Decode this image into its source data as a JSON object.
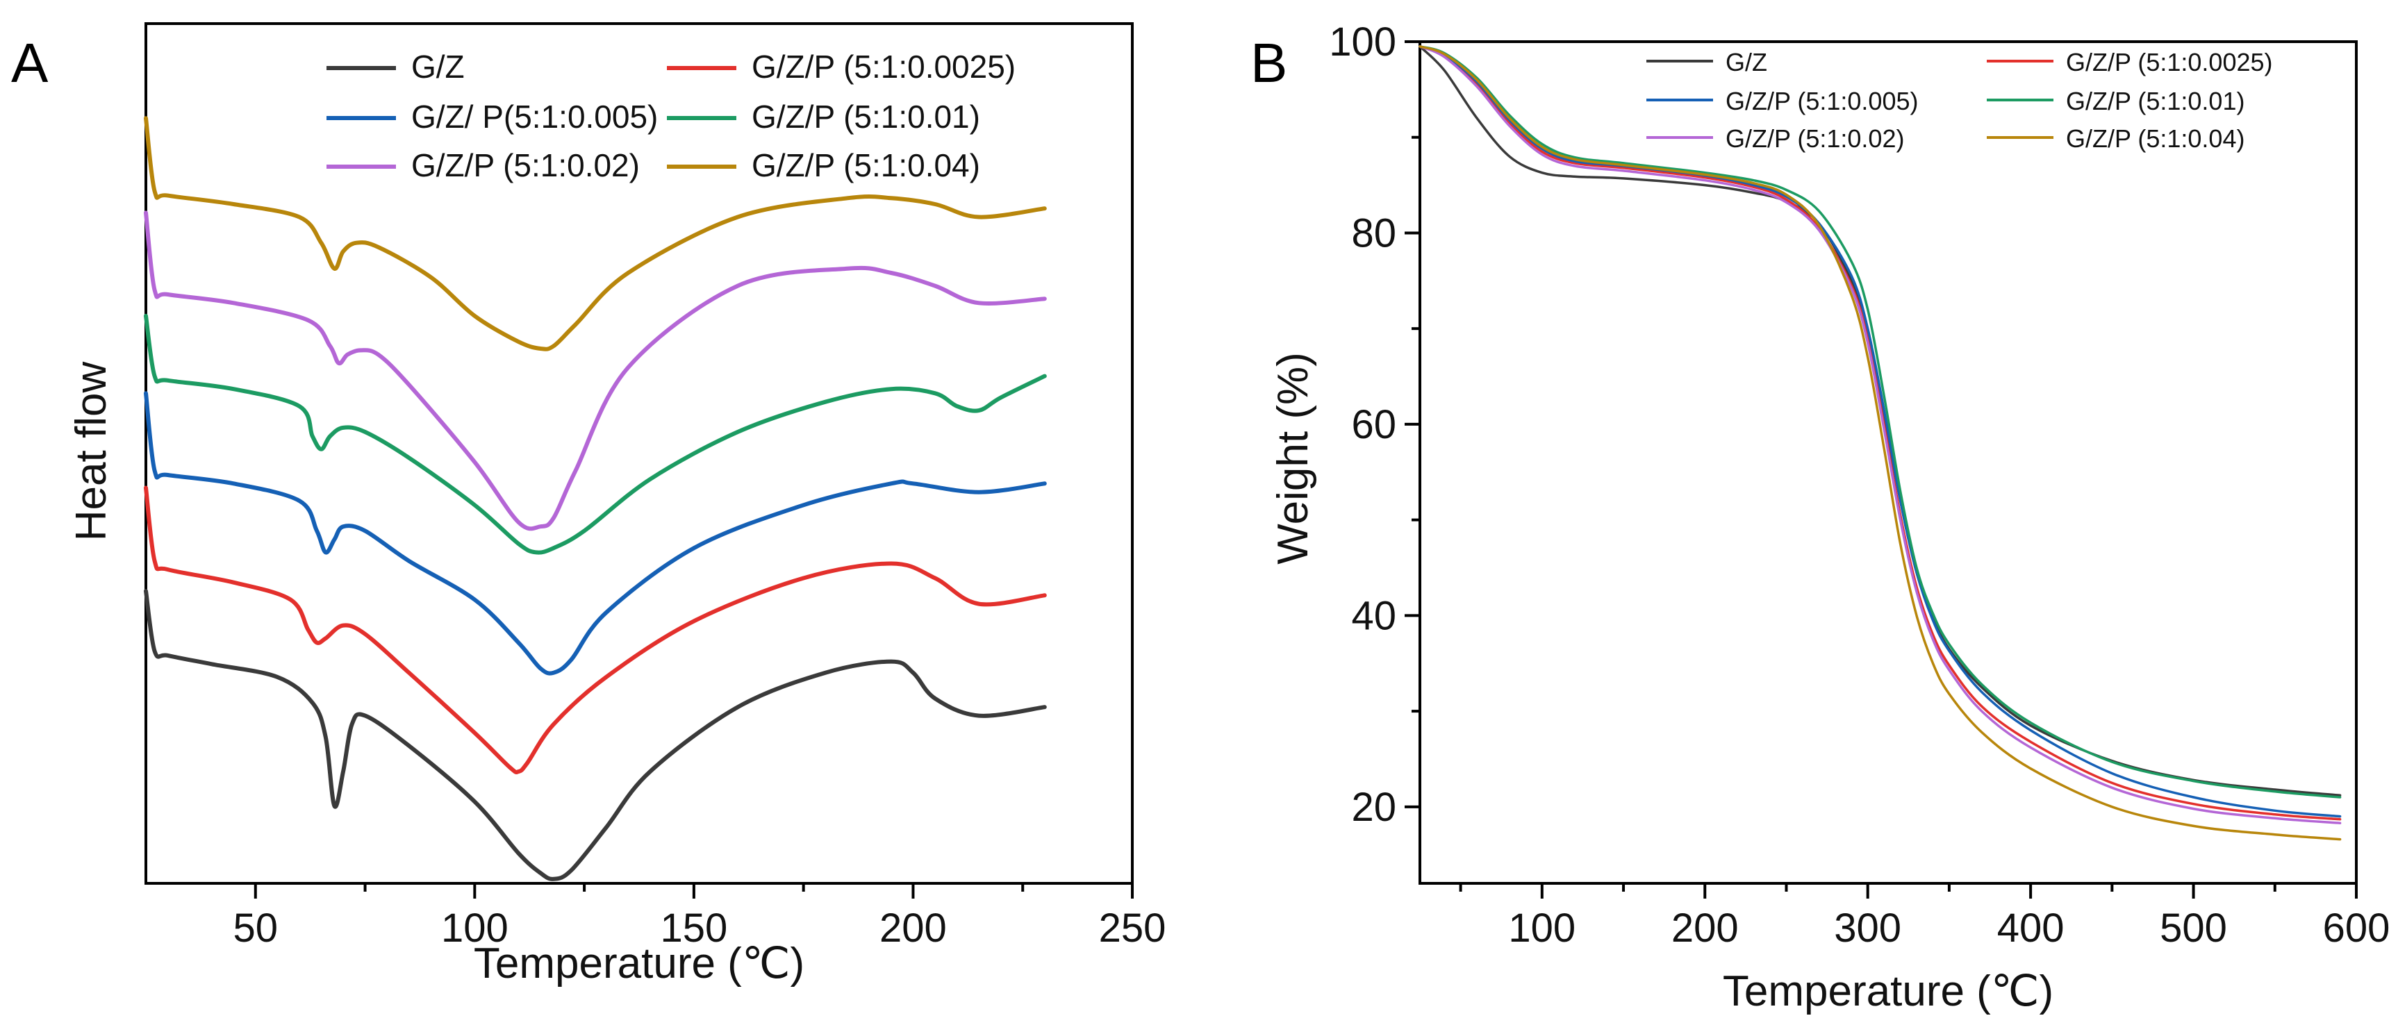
{
  "chart_data": [
    {
      "panel": "A",
      "type": "line",
      "title": "",
      "xlabel": "Temperature (℃)",
      "ylabel": "Heat flow",
      "xlim": [
        25,
        250
      ],
      "ylim": [
        0,
        100
      ],
      "xticks": [
        50,
        100,
        150,
        200,
        250
      ],
      "yticks_visible": false,
      "grid": false,
      "legend_position": "top-right",
      "series": [
        {
          "name": "G/Z",
          "color": "#3a3a3a",
          "x": [
            25,
            27,
            30,
            40,
            55,
            63,
            66,
            68,
            70,
            72,
            75,
            85,
            100,
            110,
            115,
            118,
            122,
            130,
            140,
            160,
            180,
            195,
            200,
            205,
            215,
            230
          ],
          "y": [
            34,
            27,
            26.5,
            25.5,
            24,
            21,
            17,
            9,
            13,
            18.5,
            19.5,
            16,
            9.5,
            3.5,
            1.2,
            0.5,
            1.5,
            6.5,
            13,
            20.5,
            24.5,
            25.8,
            24.5,
            21.5,
            19.5,
            20.5
          ]
        },
        {
          "name": "G/Z/P (5:1:0.0025)",
          "color": "#e3302c",
          "x": [
            25,
            27,
            30,
            45,
            58,
            62,
            64,
            66,
            70,
            75,
            85,
            100,
            108,
            110,
            112,
            118,
            130,
            150,
            175,
            195,
            205,
            215,
            230
          ],
          "y": [
            46,
            37.5,
            36.5,
            35,
            33,
            29.5,
            28,
            28.5,
            30,
            29,
            24.5,
            17.5,
            13.5,
            13,
            14,
            18.5,
            24,
            30.5,
            35.5,
            37.2,
            35.5,
            32.5,
            33.5
          ]
        },
        {
          "name": "G/Z/ P(5:1:0.005)",
          "color": "#1560b5",
          "x": [
            25,
            27,
            30,
            45,
            60,
            64,
            66,
            68,
            70,
            75,
            85,
            100,
            110,
            115,
            118,
            122,
            130,
            150,
            175,
            195,
            200,
            215,
            230
          ],
          "y": [
            57,
            48,
            47.5,
            46.5,
            44.5,
            41,
            38.5,
            40,
            41.5,
            41,
            37.5,
            33,
            28,
            25,
            24.5,
            26,
            31.5,
            39,
            44,
            46.5,
            46.5,
            45.5,
            46.5
          ]
        },
        {
          "name": "G/Z/P (5:1:0.01)",
          "color": "#1c9b62",
          "x": [
            25,
            27,
            30,
            45,
            60,
            63,
            65,
            67,
            70,
            75,
            85,
            100,
            110,
            114,
            118,
            125,
            140,
            160,
            180,
            195,
            205,
            210,
            215,
            220,
            230
          ],
          "y": [
            66,
            59,
            58.5,
            57.5,
            55.5,
            52,
            50.5,
            52,
            53,
            52.5,
            49.5,
            44,
            39.5,
            38.5,
            39,
            41,
            47,
            52.5,
            56,
            57.5,
            57,
            55.5,
            55,
            56.5,
            59
          ]
        },
        {
          "name": "G/Z/P (5:1:0.02)",
          "color": "#b466d6",
          "x": [
            25,
            27,
            30,
            45,
            62,
            67,
            69,
            71,
            74,
            78,
            85,
            100,
            110,
            115,
            118,
            123,
            135,
            160,
            185,
            195,
            205,
            215,
            230
          ],
          "y": [
            78,
            69,
            68.5,
            67.5,
            65.5,
            62.5,
            60.5,
            61.5,
            62,
            61.5,
            58,
            49,
            42,
            41.5,
            42.5,
            48,
            60,
            69.5,
            71.5,
            71,
            69.5,
            67.5,
            68
          ]
        },
        {
          "name": "G/Z/P (5:1:0.04)",
          "color": "#b8860b",
          "x": [
            25,
            27,
            30,
            45,
            60,
            65,
            68,
            70,
            73,
            78,
            90,
            100,
            110,
            115,
            118,
            123,
            135,
            160,
            185,
            195,
            205,
            215,
            230
          ],
          "y": [
            89,
            80.5,
            80,
            79,
            77.5,
            74.5,
            71.5,
            73.5,
            74.5,
            74,
            70.5,
            66,
            63,
            62.2,
            62.5,
            65,
            71,
            77.5,
            79.7,
            79.7,
            79,
            77.5,
            78.5
          ]
        }
      ]
    },
    {
      "panel": "B",
      "type": "line",
      "title": "",
      "xlabel": "Temperature (℃)",
      "ylabel": "Weight (%)",
      "xlim": [
        25,
        600
      ],
      "ylim": [
        12,
        100
      ],
      "xticks": [
        100,
        200,
        300,
        400,
        500,
        600
      ],
      "yticks": [
        20,
        40,
        60,
        80,
        100
      ],
      "grid": false,
      "legend_position": "top-right",
      "series": [
        {
          "name": "G/Z",
          "color": "#3a3a3a",
          "x": [
            25,
            40,
            60,
            80,
            100,
            120,
            150,
            200,
            230,
            250,
            270,
            290,
            300,
            310,
            320,
            330,
            340,
            350,
            370,
            400,
            450,
            500,
            550,
            590
          ],
          "y": [
            99.5,
            97,
            92,
            88,
            86.3,
            85.9,
            85.7,
            85,
            84.2,
            83.3,
            81,
            75,
            69.5,
            61,
            52,
            44.5,
            39.8,
            36.5,
            32.5,
            28.5,
            24.8,
            22.8,
            21.8,
            21.2
          ]
        },
        {
          "name": "G/Z/P (5:1:0.0025)",
          "color": "#e3302c",
          "x": [
            25,
            40,
            60,
            80,
            100,
            120,
            150,
            200,
            230,
            250,
            270,
            290,
            300,
            310,
            320,
            330,
            340,
            350,
            370,
            400,
            450,
            500,
            550,
            590
          ],
          "y": [
            99.5,
            98.5,
            95.5,
            91.5,
            88.5,
            87.3,
            86.8,
            85.8,
            84.8,
            83.5,
            80.5,
            74.5,
            69,
            60,
            50.5,
            43,
            38,
            34.8,
            30.5,
            26.8,
            22.5,
            20.3,
            19.2,
            18.7
          ]
        },
        {
          "name": "G/Z/P (5:1:0.005)",
          "color": "#1560b5",
          "x": [
            25,
            40,
            60,
            80,
            100,
            120,
            150,
            200,
            230,
            250,
            270,
            290,
            300,
            310,
            320,
            330,
            340,
            350,
            370,
            400,
            450,
            500,
            550,
            590
          ],
          "y": [
            99.5,
            98.6,
            95.8,
            91.8,
            88.8,
            87.5,
            87,
            86,
            85,
            83.8,
            81,
            75.5,
            70,
            61.5,
            52,
            44.5,
            39.5,
            36.3,
            32,
            28,
            23.5,
            21,
            19.6,
            19
          ]
        },
        {
          "name": "G/Z/P (5:1:0.01)",
          "color": "#1c9b62",
          "x": [
            25,
            40,
            60,
            80,
            100,
            120,
            150,
            200,
            230,
            250,
            270,
            290,
            300,
            310,
            320,
            330,
            340,
            350,
            370,
            400,
            450,
            500,
            550,
            590
          ],
          "y": [
            99.5,
            98.8,
            96.2,
            92.3,
            89.3,
            87.9,
            87.3,
            86.3,
            85.5,
            84.5,
            82.3,
            77,
            72,
            63,
            53,
            45,
            40.2,
            37,
            32.8,
            28.8,
            24.7,
            22.7,
            21.6,
            21
          ]
        },
        {
          "name": "G/Z/P (5:1:0.02)",
          "color": "#b466d6",
          "x": [
            25,
            40,
            60,
            80,
            100,
            120,
            150,
            200,
            230,
            250,
            270,
            290,
            300,
            310,
            320,
            330,
            340,
            350,
            370,
            400,
            450,
            500,
            550,
            590
          ],
          "y": [
            99.5,
            98.4,
            95.3,
            91.2,
            88.2,
            87,
            86.5,
            85.5,
            84.5,
            83.2,
            80.3,
            74.2,
            68.5,
            59.5,
            50,
            42.5,
            37.5,
            34.3,
            30,
            26.2,
            22,
            19.8,
            18.8,
            18.3
          ]
        },
        {
          "name": "G/Z/P (5:1:0.04)",
          "color": "#b8860b",
          "x": [
            25,
            40,
            60,
            80,
            100,
            120,
            150,
            200,
            230,
            250,
            270,
            290,
            300,
            310,
            320,
            330,
            340,
            350,
            370,
            400,
            450,
            500,
            550,
            590
          ],
          "y": [
            99.5,
            98.7,
            96,
            92,
            89,
            87.7,
            87.1,
            86.1,
            85.2,
            84,
            80.8,
            73.5,
            67,
            57.5,
            47.5,
            40,
            35,
            31.8,
            27.8,
            24,
            20,
            18,
            17.1,
            16.6
          ]
        }
      ]
    }
  ],
  "panel_labels": {
    "a": "A",
    "b": "B"
  }
}
